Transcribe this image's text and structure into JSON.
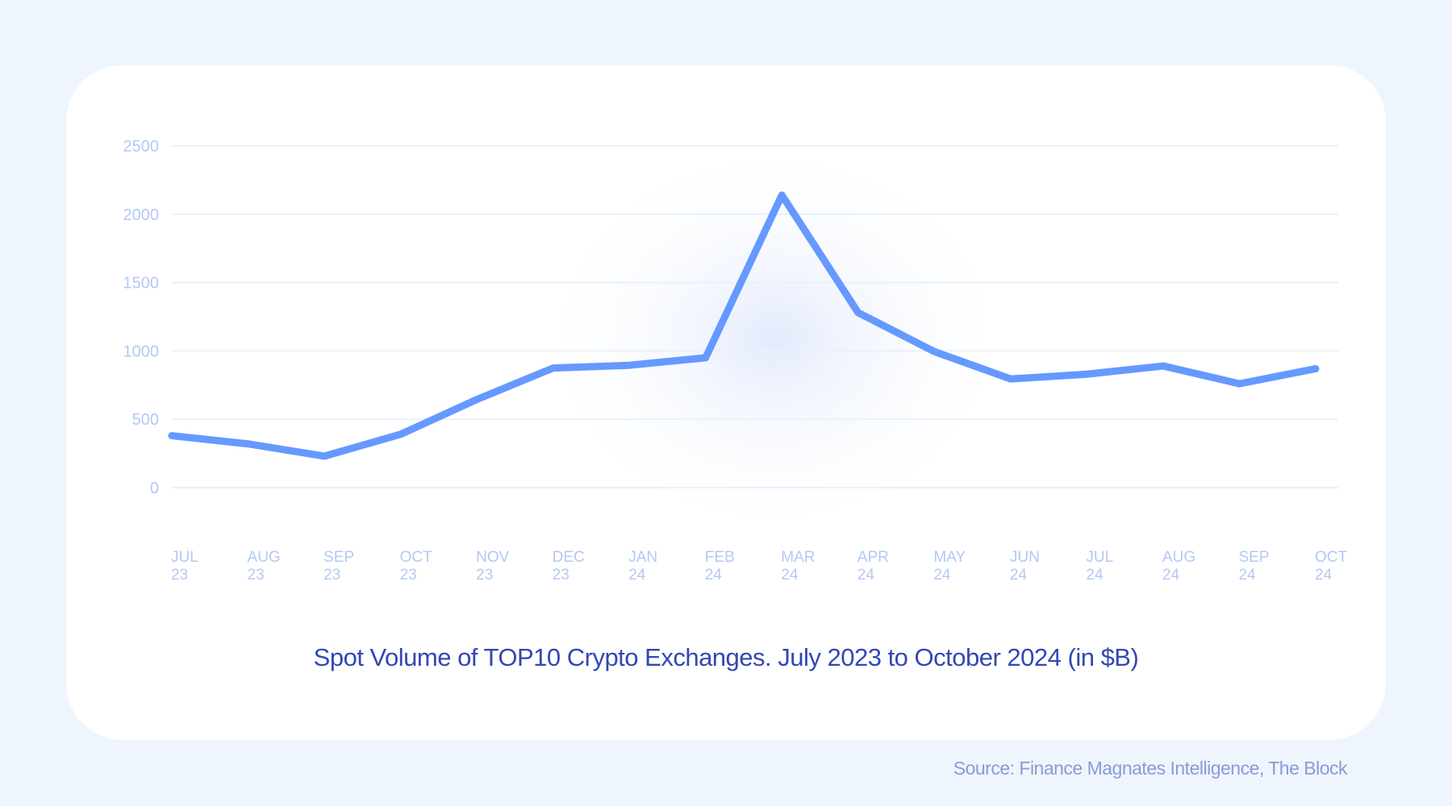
{
  "chart_data": {
    "type": "line",
    "title": "Spot Volume of TOP10 Crypto Exchanges. July 2023 to October 2024 (in $B)",
    "source": "Source: Finance Magnates Intelligence, The Block",
    "categories": [
      [
        "JUL",
        "23"
      ],
      [
        "AUG",
        "23"
      ],
      [
        "SEP",
        "23"
      ],
      [
        "OCT",
        "23"
      ],
      [
        "NOV",
        "23"
      ],
      [
        "DEC",
        "23"
      ],
      [
        "JAN",
        "24"
      ],
      [
        "FEB",
        "24"
      ],
      [
        "MAR",
        "24"
      ],
      [
        "APR",
        "24"
      ],
      [
        "MAY",
        "24"
      ],
      [
        "JUN",
        "24"
      ],
      [
        "JUL",
        "24"
      ],
      [
        "AUG",
        "24"
      ],
      [
        "SEP",
        "24"
      ],
      [
        "OCT",
        "24"
      ]
    ],
    "values": [
      380,
      320,
      230,
      390,
      645,
      875,
      895,
      950,
      2140,
      1280,
      995,
      795,
      830,
      890,
      760,
      870
    ],
    "ylim": [
      0,
      2500
    ],
    "yticks": [
      "0",
      "500",
      "1000",
      "1500",
      "2000",
      "2500"
    ],
    "grid": true,
    "colors": {
      "line": "#6699ff",
      "grid": "#e8f1fc",
      "ticks": "#b3c8f5",
      "title": "#3347b3"
    }
  }
}
